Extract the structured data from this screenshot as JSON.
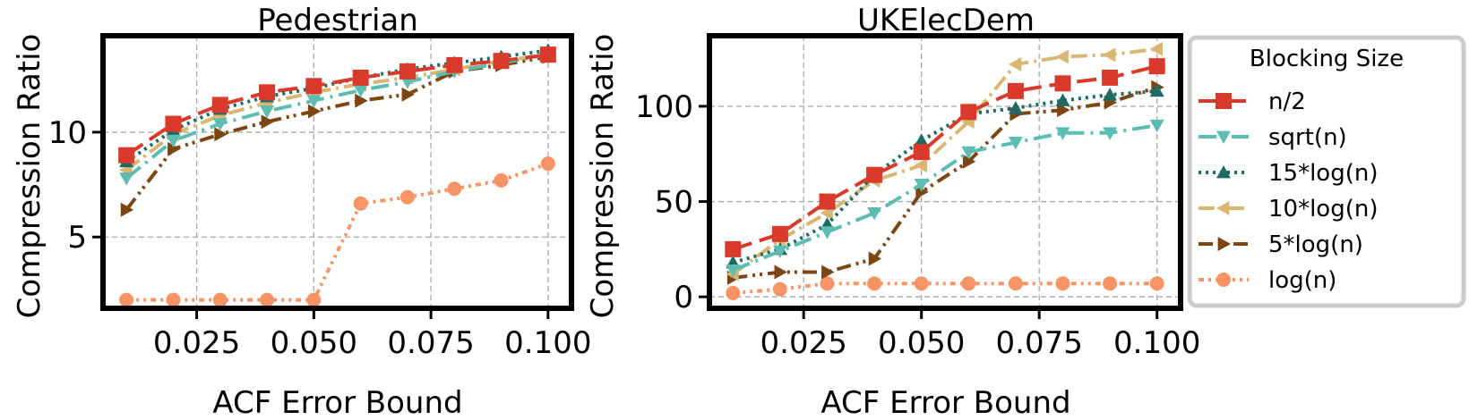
{
  "chart_data": [
    {
      "type": "line",
      "title": "Pedestrian",
      "xlabel": "ACF Error Bound",
      "ylabel": "Compression Ratio",
      "xlim": [
        0.005,
        0.105
      ],
      "ylim": [
        1.6,
        14.6
      ],
      "xticks": [
        0.025,
        0.05,
        0.075,
        0.1
      ],
      "xtick_labels": [
        "0.025",
        "0.050",
        "0.075",
        "0.100"
      ],
      "yticks": [
        5,
        10
      ],
      "ytick_labels": [
        "5",
        "10"
      ],
      "grid": true,
      "x": [
        0.01,
        0.02,
        0.03,
        0.04,
        0.05,
        0.06,
        0.07,
        0.08,
        0.09,
        0.1
      ],
      "series": [
        {
          "name": "n/2",
          "values": [
            8.9,
            10.4,
            11.3,
            11.9,
            12.2,
            12.6,
            12.9,
            13.2,
            13.4,
            13.7
          ]
        },
        {
          "name": "sqrt(n)",
          "values": [
            7.8,
            9.6,
            10.4,
            11.0,
            11.5,
            12.0,
            12.4,
            12.9,
            13.3,
            13.7
          ]
        },
        {
          "name": "15*log(n)",
          "values": [
            8.6,
            10.1,
            11.1,
            11.7,
            12.1,
            12.6,
            13.0,
            13.3,
            13.6,
            13.9
          ]
        },
        {
          "name": "10*log(n)",
          "values": [
            8.2,
            9.9,
            10.8,
            11.4,
            11.9,
            12.3,
            12.6,
            13.0,
            13.4,
            13.7
          ]
        },
        {
          "name": "5*log(n)",
          "values": [
            6.3,
            9.2,
            9.9,
            10.5,
            11.0,
            11.5,
            11.8,
            12.9,
            13.2,
            13.6
          ]
        },
        {
          "name": "log(n)",
          "values": [
            2.0,
            2.0,
            2.0,
            2.0,
            2.0,
            6.6,
            6.9,
            7.3,
            7.7,
            8.5
          ]
        }
      ]
    },
    {
      "type": "line",
      "title": "UKElecDem",
      "xlabel": "ACF Error Bound",
      "ylabel": "Compression Ratio",
      "xlim": [
        0.005,
        0.105
      ],
      "ylim": [
        -6,
        137
      ],
      "xticks": [
        0.025,
        0.05,
        0.075,
        0.1
      ],
      "xtick_labels": [
        "0.025",
        "0.050",
        "0.075",
        "0.100"
      ],
      "yticks": [
        0,
        50,
        100
      ],
      "ytick_labels": [
        "0",
        "50",
        "100"
      ],
      "grid": true,
      "x": [
        0.01,
        0.02,
        0.03,
        0.04,
        0.05,
        0.06,
        0.07,
        0.08,
        0.09,
        0.1
      ],
      "series": [
        {
          "name": "n/2",
          "values": [
            25,
            33,
            50,
            64,
            76,
            97,
            108,
            112,
            115,
            121
          ]
        },
        {
          "name": "sqrt(n)",
          "values": [
            14,
            24,
            34,
            44,
            59,
            76,
            81,
            86,
            86,
            90
          ]
        },
        {
          "name": "15*log(n)",
          "values": [
            18,
            25,
            38,
            64,
            82,
            96,
            99,
            103,
            106,
            108
          ]
        },
        {
          "name": "10*log(n)",
          "values": [
            12,
            30,
            44,
            61,
            69,
            92,
            122,
            126,
            127,
            130
          ]
        },
        {
          "name": "5*log(n)",
          "values": [
            10,
            13,
            13,
            20,
            55,
            71,
            96,
            98,
            102,
            110
          ]
        },
        {
          "name": "log(n)",
          "values": [
            2,
            4,
            7,
            7,
            7,
            7,
            7,
            7,
            7,
            7
          ]
        }
      ]
    }
  ],
  "legend": {
    "title": "Blocking Size",
    "position": "right",
    "entries": [
      "n/2",
      "sqrt(n)",
      "15*log(n)",
      "10*log(n)",
      "5*log(n)",
      "log(n)"
    ]
  },
  "styles": [
    {
      "color": "#d93a2b",
      "marker": "square",
      "dash": "22 9"
    },
    {
      "color": "#5dbdb2",
      "marker": "triangle-down",
      "dash": "20 7 3 7"
    },
    {
      "color": "#1e6b63",
      "marker": "triangle-up",
      "dash": "3 5"
    },
    {
      "color": "#d8b871",
      "marker": "triangle-left",
      "dash": "18 6 3 6"
    },
    {
      "color": "#7b4613",
      "marker": "triangle-right",
      "dash": "16 6 3 5 3 6"
    },
    {
      "color": "#f79465",
      "marker": "circle",
      "dash": "6 5 3 5 3 5"
    }
  ]
}
